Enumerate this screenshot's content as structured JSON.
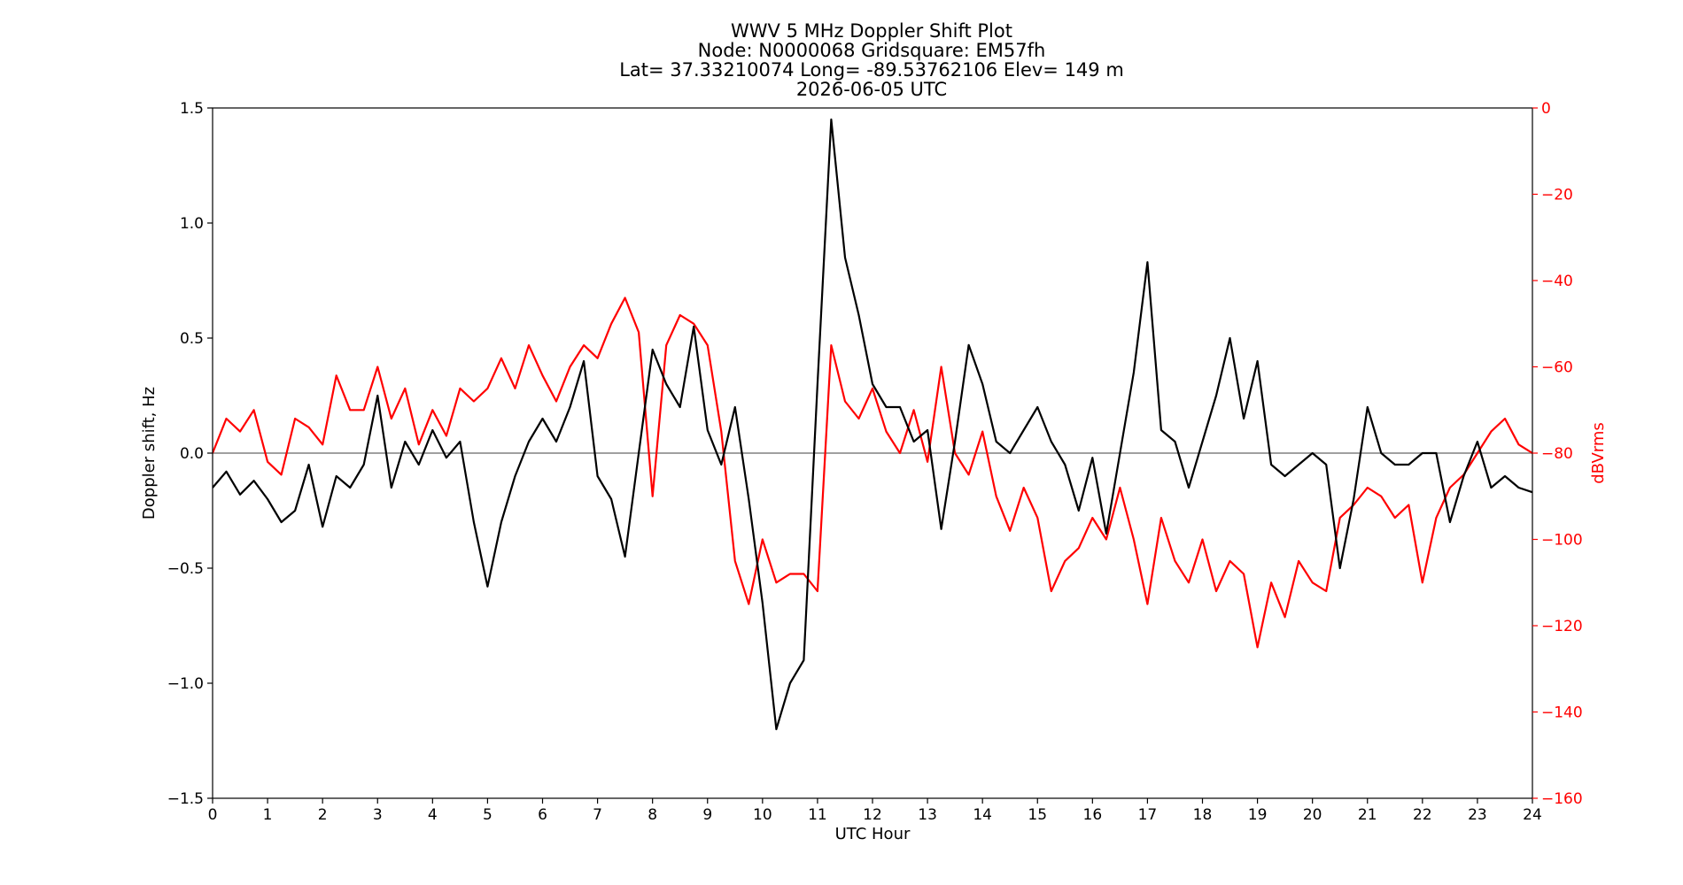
{
  "chart_data": {
    "type": "line",
    "title_lines": [
      "WWV 5 MHz Doppler Shift Plot",
      "Node:  N0000068     Gridsquare:  EM57fh",
      "Lat= 37.33210074    Long= -89.53762106    Elev= 149 m",
      "2026-06-05  UTC"
    ],
    "xlabel": "UTC Hour",
    "ylabel_left": "Doppler shift, Hz",
    "ylabel_right": "dBVrms",
    "xlim": [
      0,
      24
    ],
    "ylim_left": [
      -1.5,
      1.5
    ],
    "ylim_right": [
      -160,
      0
    ],
    "x_ticks": [
      "0",
      "1",
      "2",
      "3",
      "4",
      "5",
      "6",
      "7",
      "8",
      "9",
      "10",
      "11",
      "12",
      "13",
      "14",
      "15",
      "16",
      "17",
      "18",
      "19",
      "20",
      "21",
      "22",
      "23",
      "24"
    ],
    "y_left_ticks": [
      "1.5",
      "1.0",
      "0.5",
      "0.0",
      "−0.5",
      "−1.0",
      "−1.5"
    ],
    "y_right_ticks": [
      "0",
      "−20",
      "−40",
      "−60",
      "−80",
      "−100",
      "−120",
      "−140",
      "−160"
    ],
    "colors": {
      "doppler": "#000000",
      "power": "#ff0000",
      "zero_line": "#808080"
    },
    "grid": false,
    "series": [
      {
        "axis": "left",
        "x": [
          0,
          0.25,
          0.5,
          0.75,
          1,
          1.25,
          1.5,
          1.75,
          2,
          2.25,
          2.5,
          2.75,
          3,
          3.25,
          3.5,
          3.75,
          4,
          4.25,
          4.5,
          4.75,
          5,
          5.25,
          5.5,
          5.75,
          6,
          6.25,
          6.5,
          6.75,
          7,
          7.25,
          7.5,
          7.75,
          8,
          8.25,
          8.5,
          8.75,
          9,
          9.25,
          9.5,
          9.75,
          10,
          10.25,
          10.5,
          10.75,
          11,
          11.25,
          11.5,
          11.75,
          12,
          12.25,
          12.5,
          12.75,
          13,
          13.25,
          13.5,
          13.75,
          14,
          14.25,
          14.5,
          14.75,
          15,
          15.25,
          15.5,
          15.75,
          16,
          16.25,
          16.5,
          16.75,
          17,
          17.25,
          17.5,
          17.75,
          18,
          18.25,
          18.5,
          18.75,
          19,
          19.25,
          19.5,
          19.75,
          20,
          20.25,
          20.5,
          20.75,
          21,
          21.25,
          21.5,
          21.75,
          22,
          22.25,
          22.5,
          22.75,
          23,
          23.25,
          23.5,
          23.75,
          24
        ],
        "values": [
          -0.15,
          -0.08,
          -0.18,
          -0.12,
          -0.2,
          -0.3,
          -0.25,
          -0.05,
          -0.32,
          -0.1,
          -0.15,
          -0.05,
          0.25,
          -0.15,
          0.05,
          -0.05,
          0.1,
          -0.02,
          0.05,
          -0.3,
          -0.58,
          -0.3,
          -0.1,
          0.05,
          0.15,
          0.05,
          0.2,
          0.4,
          -0.1,
          -0.2,
          -0.45,
          0.0,
          0.45,
          0.3,
          0.2,
          0.55,
          0.1,
          -0.05,
          0.2,
          -0.2,
          -0.65,
          -1.2,
          -1.0,
          -0.9,
          0.3,
          1.45,
          0.85,
          0.6,
          0.3,
          0.2,
          0.2,
          0.05,
          0.1,
          -0.33,
          0.05,
          0.47,
          0.3,
          0.05,
          0.0,
          0.1,
          0.2,
          0.05,
          -0.05,
          -0.25,
          -0.02,
          -0.35,
          0.0,
          0.35,
          0.83,
          0.1,
          0.05,
          -0.15,
          0.05,
          0.25,
          0.5,
          0.15,
          0.4,
          -0.05,
          -0.1,
          -0.05,
          0.0,
          -0.05,
          -0.5,
          -0.2,
          0.2,
          0.0,
          -0.05,
          -0.05,
          0.0,
          0.0,
          -0.3,
          -0.1,
          0.05,
          -0.15,
          -0.1,
          -0.15,
          -0.17
        ]
      },
      {
        "axis": "right",
        "x": [
          0,
          0.25,
          0.5,
          0.75,
          1,
          1.25,
          1.5,
          1.75,
          2,
          2.25,
          2.5,
          2.75,
          3,
          3.25,
          3.5,
          3.75,
          4,
          4.25,
          4.5,
          4.75,
          5,
          5.25,
          5.5,
          5.75,
          6,
          6.25,
          6.5,
          6.75,
          7,
          7.25,
          7.5,
          7.75,
          8,
          8.25,
          8.5,
          8.75,
          9,
          9.25,
          9.5,
          9.75,
          10,
          10.25,
          10.5,
          10.75,
          11,
          11.25,
          11.5,
          11.75,
          12,
          12.25,
          12.5,
          12.75,
          13,
          13.25,
          13.5,
          13.75,
          14,
          14.25,
          14.5,
          14.75,
          15,
          15.25,
          15.5,
          15.75,
          16,
          16.25,
          16.5,
          16.75,
          17,
          17.25,
          17.5,
          17.75,
          18,
          18.25,
          18.5,
          18.75,
          19,
          19.25,
          19.5,
          19.75,
          20,
          20.25,
          20.5,
          20.75,
          21,
          21.25,
          21.5,
          21.75,
          22,
          22.25,
          22.5,
          22.75,
          23,
          23.25,
          23.5,
          23.75,
          24
        ],
        "values": [
          -80,
          -72,
          -75,
          -70,
          -82,
          -85,
          -72,
          -74,
          -78,
          -62,
          -70,
          -70,
          -60,
          -72,
          -65,
          -78,
          -70,
          -76,
          -65,
          -68,
          -65,
          -58,
          -65,
          -55,
          -62,
          -68,
          -60,
          -55,
          -58,
          -50,
          -44,
          -52,
          -90,
          -55,
          -48,
          -50,
          -55,
          -75,
          -105,
          -115,
          -100,
          -110,
          -108,
          -108,
          -112,
          -55,
          -68,
          -72,
          -65,
          -75,
          -80,
          -70,
          -82,
          -60,
          -80,
          -85,
          -75,
          -90,
          -98,
          -88,
          -95,
          -112,
          -105,
          -102,
          -95,
          -100,
          -88,
          -100,
          -115,
          -95,
          -105,
          -110,
          -100,
          -112,
          -105,
          -108,
          -125,
          -110,
          -118,
          -105,
          -110,
          -112,
          -95,
          -92,
          -88,
          -90,
          -95,
          -92,
          -110,
          -95,
          -88,
          -85,
          -80,
          -75,
          -72,
          -78,
          -80
        ]
      }
    ]
  }
}
